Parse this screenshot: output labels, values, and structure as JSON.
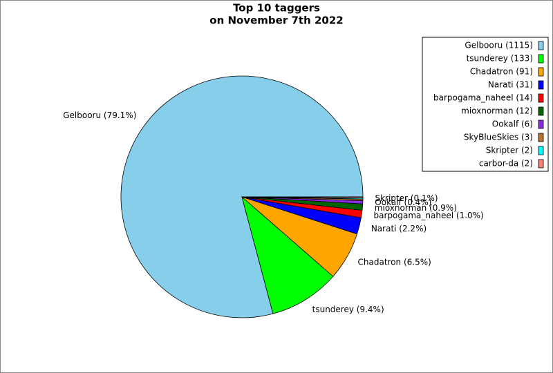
{
  "chart_data": {
    "type": "pie",
    "title": [
      "Top 10 taggers",
      "on November 7th 2022"
    ],
    "categories": [
      "Gelbooru",
      "tsunderey",
      "Chadatron",
      "Narati",
      "barpogama_naheel",
      "mioxnorman",
      "Ookalf",
      "SkyBlueSkies",
      "Skripter",
      "carbor-da"
    ],
    "values": [
      1115,
      133,
      91,
      31,
      14,
      12,
      6,
      3,
      2,
      2
    ],
    "colors": [
      "#87ceeb",
      "#00ff00",
      "#ffa500",
      "#0000ff",
      "#ff0000",
      "#006400",
      "#8a2be2",
      "#b8732f",
      "#00ffff",
      "#fa8072"
    ],
    "legend_labels": [
      "Gelbooru (1115)",
      "tsunderey (133)",
      "Chadatron (91)",
      "Narati (31)",
      "barpogama_naheel (14)",
      "mioxnorman (12)",
      "Ookalf (6)",
      "SkyBlueSkies (3)",
      "Skripter (2)",
      "carbor-da (2)"
    ],
    "slice_labels": [
      "Gelbooru (79.1%)",
      "tsunderey (9.4%)",
      "Chadatron (6.5%)",
      "Narati (2.2%)",
      "barpogama_naheel (1.0%)",
      "mioxnorman (0.9%)",
      "Ookalf (0.4%)",
      null,
      "Skripter (0.1%)",
      null
    ],
    "legend": "upper right"
  }
}
